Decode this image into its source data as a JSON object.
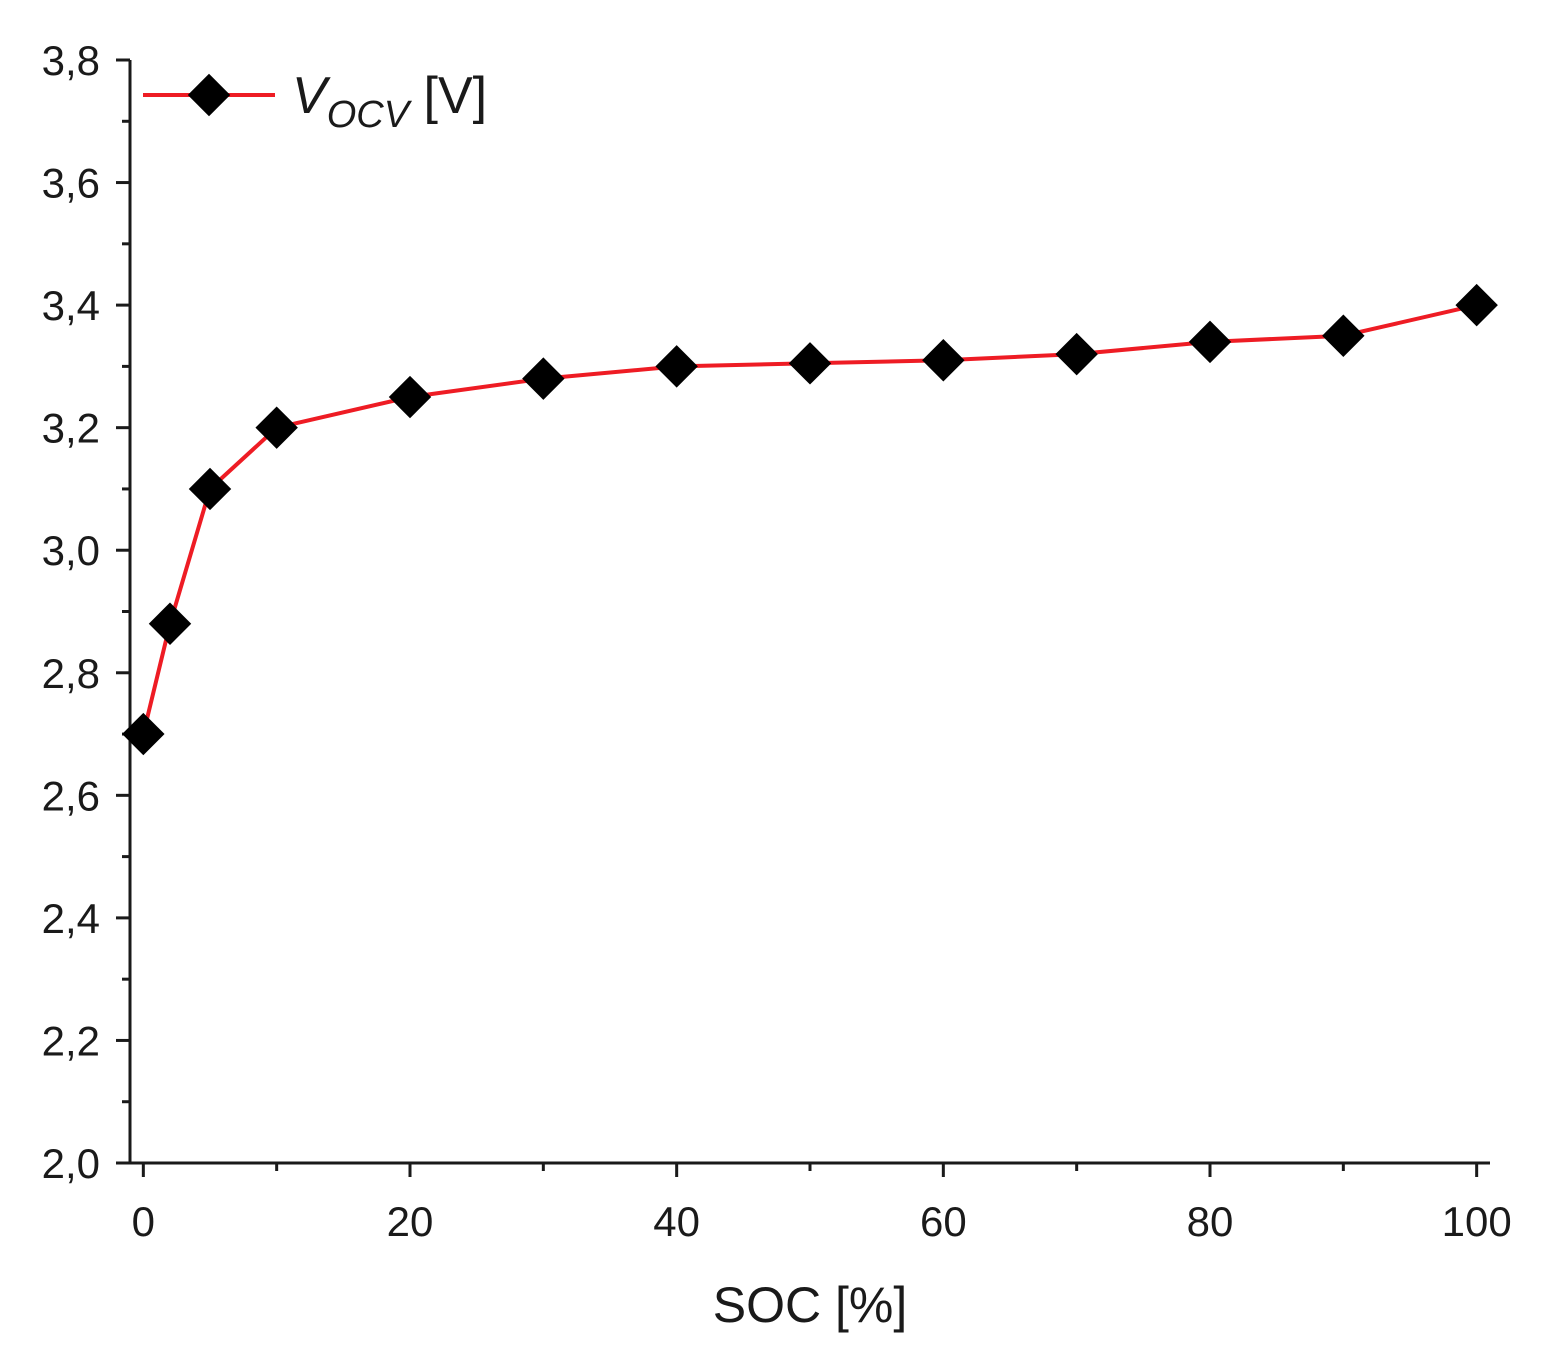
{
  "chart_data": {
    "type": "line",
    "title": "",
    "xlabel": "SOC [%]",
    "ylabel": "",
    "xlim": [
      -1,
      101
    ],
    "ylim": [
      2.0,
      3.8
    ],
    "x_ticks": [
      0,
      20,
      40,
      60,
      80,
      100
    ],
    "x_tick_labels": [
      "0",
      "20",
      "40",
      "60",
      "80",
      "100"
    ],
    "x_minor_ticks": [
      10,
      30,
      50,
      70,
      90
    ],
    "y_ticks": [
      2.0,
      2.2,
      2.4,
      2.6,
      2.8,
      3.0,
      3.2,
      3.4,
      3.6,
      3.8
    ],
    "y_tick_labels": [
      "2,0",
      "2,2",
      "2,4",
      "2,6",
      "2,8",
      "3,0",
      "3,2",
      "3,4",
      "3,6",
      "3,8"
    ],
    "y_minor_ticks": [
      2.1,
      2.3,
      2.5,
      2.7,
      2.9,
      3.1,
      3.3,
      3.5,
      3.7
    ],
    "grid": false,
    "legend_position": "top-left",
    "series": [
      {
        "name": "V_OCV [V]",
        "legend_main": "V",
        "legend_sub": "OCV",
        "legend_unit": " [V]",
        "line_color": "#ee1c24",
        "marker": "diamond",
        "marker_color": "#000000",
        "x": [
          0,
          2,
          5,
          10,
          20,
          30,
          40,
          50,
          60,
          70,
          80,
          90,
          100
        ],
        "y": [
          2.7,
          2.88,
          3.1,
          3.2,
          3.25,
          3.28,
          3.3,
          3.305,
          3.31,
          3.32,
          3.34,
          3.35,
          3.4
        ]
      }
    ]
  }
}
